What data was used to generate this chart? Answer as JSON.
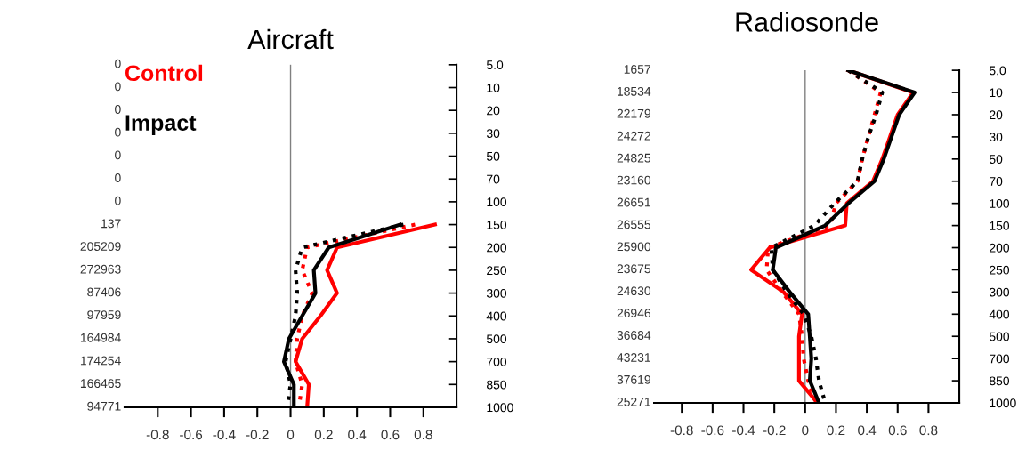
{
  "chart_data": [
    {
      "type": "line",
      "title": "Aircraft",
      "orientation": "horizontal",
      "legend": "top left",
      "grid": false,
      "marker": "none",
      "categories": [
        "5.0",
        "10",
        "20",
        "30",
        "50",
        "70",
        "100",
        "150",
        "200",
        "250",
        "300",
        "400",
        "500",
        "700",
        "850",
        "1000"
      ],
      "y2_categories": [
        "0",
        "0",
        "0",
        "0",
        "0",
        "0",
        "0",
        "137",
        "205209",
        "272963",
        "87406",
        "97959",
        "164984",
        "174254",
        "166465",
        "94771"
      ],
      "xlim": [
        -1,
        1
      ],
      "xticks": [
        -0.8,
        -0.6,
        -0.4,
        -0.2,
        0,
        0.2,
        0.4,
        0.6,
        0.8
      ],
      "ref_lines": [
        {
          "axis": "x",
          "value": 0,
          "color": "#808080",
          "line_style": "solid"
        }
      ],
      "series": [
        {
          "name": "Control",
          "color": "#ff0000",
          "line_style": "solid",
          "values": [
            null,
            null,
            null,
            null,
            null,
            null,
            null,
            0.87,
            0.28,
            0.22,
            0.28,
            0.18,
            0.07,
            0.03,
            0.11,
            0.1
          ]
        },
        {
          "color": "#ff0000",
          "line_style": "dotted",
          "values": [
            null,
            null,
            null,
            null,
            null,
            null,
            null,
            0.75,
            0.1,
            0.07,
            0.13,
            0.07,
            0.04,
            0.03,
            0.07,
            0.05
          ]
        },
        {
          "name": "Impact",
          "color": "#000000",
          "line_style": "solid",
          "values": [
            null,
            null,
            null,
            null,
            null,
            null,
            null,
            0.66,
            0.23,
            0.14,
            0.15,
            0.07,
            -0.01,
            -0.04,
            0.02,
            0.02
          ]
        },
        {
          "color": "#000000",
          "line_style": "dotted",
          "values": [
            null,
            null,
            null,
            null,
            null,
            null,
            null,
            0.68,
            0.07,
            0.03,
            0.04,
            0.03,
            0.0,
            -0.03,
            0.0,
            -0.02
          ]
        }
      ]
    },
    {
      "type": "line",
      "title": "Radiosonde",
      "orientation": "horizontal",
      "legend": false,
      "grid": false,
      "marker": "none",
      "categories": [
        "5.0",
        "10",
        "20",
        "30",
        "50",
        "70",
        "100",
        "150",
        "200",
        "250",
        "300",
        "400",
        "500",
        "700",
        "850",
        "1000"
      ],
      "y2_categories": [
        "1657",
        "18534",
        "22179",
        "24272",
        "24825",
        "23160",
        "26651",
        "26555",
        "25900",
        "23675",
        "24630",
        "26946",
        "36684",
        "43231",
        "37619",
        "25271"
      ],
      "xlim": [
        -0.98,
        1
      ],
      "xticks": [
        -0.8,
        -0.6,
        -0.4,
        -0.2,
        0,
        0.2,
        0.4,
        0.6,
        0.8
      ],
      "ref_lines": [
        {
          "axis": "x",
          "value": 0,
          "color": "#808080",
          "line_style": "solid"
        }
      ],
      "series": [
        {
          "color": "#ff0000",
          "line_style": "solid",
          "values": [
            0.28,
            0.7,
            0.6,
            0.55,
            0.5,
            0.44,
            0.27,
            0.26,
            -0.23,
            -0.35,
            -0.14,
            -0.02,
            -0.04,
            -0.04,
            -0.04,
            0.08
          ]
        },
        {
          "color": "#ff0000",
          "line_style": "dotted",
          "values": [
            0.28,
            0.49,
            0.45,
            0.41,
            0.37,
            0.34,
            0.2,
            0.16,
            -0.24,
            -0.25,
            -0.15,
            -0.04,
            -0.02,
            -0.01,
            0.02,
            0.07
          ]
        },
        {
          "color": "#000000",
          "line_style": "solid",
          "values": [
            0.28,
            0.71,
            0.61,
            0.56,
            0.51,
            0.45,
            0.28,
            0.13,
            -0.19,
            -0.21,
            -0.1,
            0.02,
            0.03,
            0.04,
            0.03,
            0.09
          ]
        },
        {
          "color": "#000000",
          "line_style": "dotted",
          "values": [
            0.28,
            0.5,
            0.46,
            0.41,
            0.37,
            0.34,
            0.19,
            0.06,
            -0.22,
            -0.21,
            -0.12,
            -0.01,
            0.04,
            0.07,
            0.09,
            0.13
          ]
        }
      ]
    }
  ]
}
